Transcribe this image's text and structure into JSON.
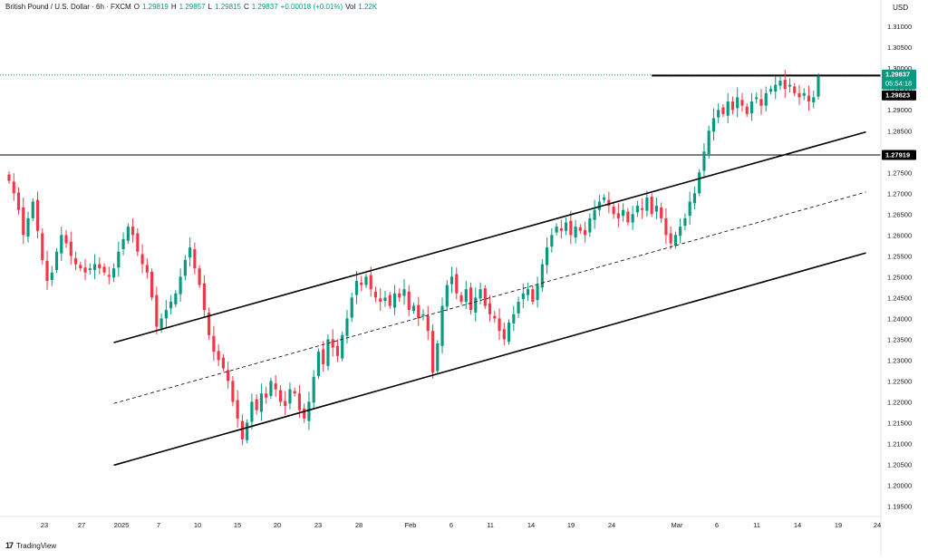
{
  "header": {
    "symbol": "British Pound / U.S. Dollar · 6h · FXCM",
    "open_label": "O",
    "open": "1.29819",
    "high_label": "H",
    "high": "1.29857",
    "low_label": "L",
    "low": "1.29815",
    "close_label": "C",
    "close": "1.29837",
    "change": "+0.00018 (+0.01%)",
    "vol_label": "Vol",
    "vol": "1.22K"
  },
  "currency": "USD",
  "brand": {
    "logo_text": "17",
    "name": "TradingView"
  },
  "colors": {
    "up": "#089981",
    "down": "#f23645",
    "text": "#131722",
    "grid": "#f0f3fa",
    "axis": "#e0e3eb",
    "line": "#000000",
    "price_line": "#089981"
  },
  "chart_data": {
    "type": "candlestick",
    "ylim": [
      1.1925,
      1.3133
    ],
    "y_ticks": [
      "1.19500",
      "1.20000",
      "1.20500",
      "1.21000",
      "1.21500",
      "1.22000",
      "1.22500",
      "1.23000",
      "1.23500",
      "1.24000",
      "1.24500",
      "1.25000",
      "1.25500",
      "1.26000",
      "1.26500",
      "1.27000",
      "1.27500",
      "1.28000",
      "1.28500",
      "1.29000",
      "1.29500",
      "1.30000",
      "1.30500",
      "1.31000"
    ],
    "x_ticks": [
      "23",
      "27",
      "2025",
      "7",
      "10",
      "15",
      "20",
      "23",
      "28",
      "Feb",
      "6",
      "11",
      "14",
      "19",
      "24",
      "Mar",
      "6",
      "11",
      "14",
      "19",
      "24"
    ],
    "price_labels": [
      {
        "price": 1.29837,
        "text": "1.29837",
        "subtext": "05:54:18",
        "style": "current"
      },
      {
        "price": 1.29823,
        "text": "1.29823",
        "style": "black"
      },
      {
        "price": 1.27919,
        "text": "1.27919",
        "style": "black"
      }
    ],
    "horizontal_lines": [
      {
        "price": 1.29837,
        "style": "dotted",
        "color": "#089981",
        "full_width": true
      },
      {
        "price": 1.27919,
        "style": "solid",
        "color": "#000000",
        "full_width": true
      },
      {
        "price": 1.29823,
        "style": "solid",
        "color": "#000000",
        "from_index": 135
      }
    ],
    "channel": [
      {
        "name": "upper",
        "style": "solid",
        "from": [
          22,
          1.2342
        ],
        "to": [
          180,
          1.2847
        ]
      },
      {
        "name": "middle",
        "style": "dashed",
        "from": [
          22,
          1.2196
        ],
        "to": [
          180,
          1.2703
        ]
      },
      {
        "name": "lower",
        "style": "solid",
        "from": [
          22,
          1.2048
        ],
        "to": [
          180,
          1.2557
        ]
      }
    ],
    "closes": [
      1.273,
      1.27,
      1.266,
      1.26,
      1.264,
      1.268,
      1.261,
      1.254,
      1.249,
      1.251,
      1.256,
      1.26,
      1.258,
      1.255,
      1.253,
      1.252,
      1.251,
      1.252,
      1.253,
      1.252,
      1.251,
      1.25,
      1.252,
      1.256,
      1.259,
      1.262,
      1.26,
      1.256,
      1.253,
      1.251,
      1.245,
      1.238,
      1.24,
      1.242,
      1.244,
      1.246,
      1.25,
      1.254,
      1.257,
      1.252,
      1.248,
      1.242,
      1.236,
      1.232,
      1.23,
      1.228,
      1.225,
      1.22,
      1.216,
      1.211,
      1.215,
      1.22,
      1.218,
      1.222,
      1.221,
      1.225,
      1.223,
      1.22,
      1.219,
      1.223,
      1.222,
      1.218,
      1.216,
      1.22,
      1.226,
      1.232,
      1.229,
      1.235,
      1.233,
      1.231,
      1.236,
      1.24,
      1.245,
      1.249,
      1.248,
      1.25,
      1.247,
      1.245,
      1.244,
      1.245,
      1.243,
      1.246,
      1.245,
      1.247,
      1.242,
      1.243,
      1.24,
      1.241,
      1.237,
      1.227,
      1.234,
      1.243,
      1.248,
      1.25,
      1.246,
      1.244,
      1.247,
      1.242,
      1.245,
      1.247,
      1.243,
      1.241,
      1.24,
      1.237,
      1.235,
      1.239,
      1.241,
      1.244,
      1.246,
      1.247,
      1.244,
      1.248,
      1.253,
      1.257,
      1.26,
      1.262,
      1.261,
      1.263,
      1.26,
      1.262,
      1.261,
      1.26,
      1.264,
      1.266,
      1.268,
      1.269,
      1.267,
      1.265,
      1.264,
      1.266,
      1.263,
      1.265,
      1.267,
      1.266,
      1.269,
      1.265,
      1.267,
      1.264,
      1.26,
      1.258,
      1.26,
      1.262,
      1.264,
      1.268,
      1.27,
      1.275,
      1.28,
      1.285,
      1.288,
      1.29,
      1.289,
      1.292,
      1.29,
      1.293,
      1.291,
      1.289,
      1.292,
      1.293,
      1.291,
      1.294,
      1.295,
      1.296,
      1.297,
      1.295,
      1.296,
      1.294,
      1.293,
      1.294,
      1.292,
      1.293,
      1.298
    ]
  }
}
